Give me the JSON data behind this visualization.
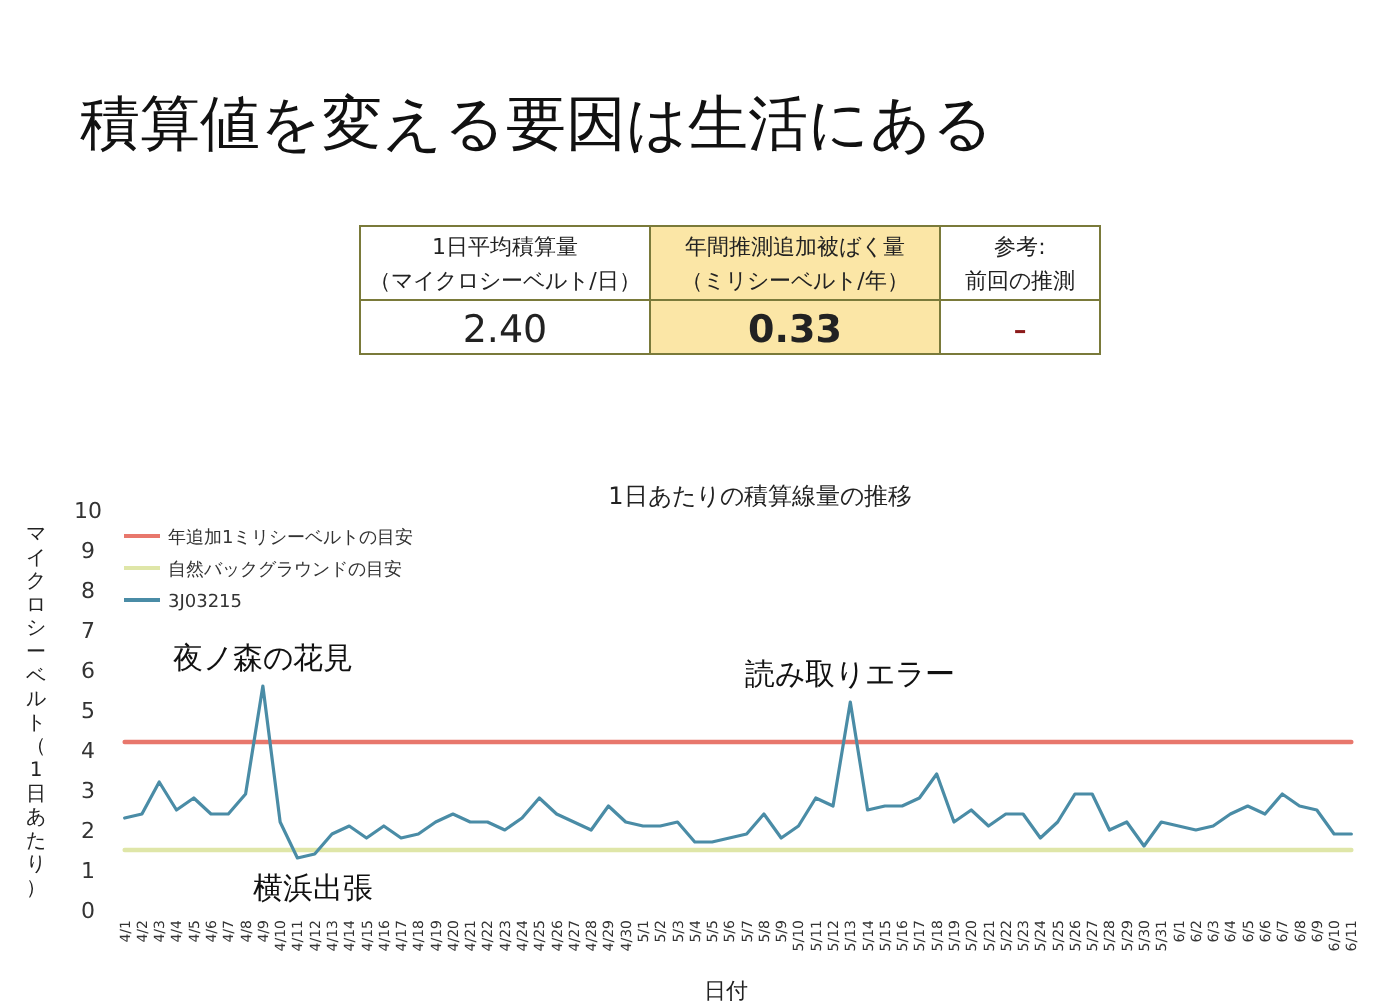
{
  "chart_data": [
    {
      "type": "other",
      "title": "積算値を変える要因は生活にある",
      "annotations": [
        "1日平均積算量",
        "（マイクロシーベルト/日）",
        "年間推測追加被ばく量",
        "（ミリシーベルト/年）",
        "参考:",
        "前回の推測",
        "2.40",
        "0.33",
        "-"
      ]
    },
    {
      "type": "line",
      "title": "1日あたりの積算線量の推移",
      "xlabel": "日付",
      "ylabel": "マイクロシーベルト（1日あたり）",
      "categories": [
        "4/1",
        "4/2",
        "4/3",
        "4/4",
        "4/5",
        "4/6",
        "4/7",
        "4/8",
        "4/9",
        "4/10",
        "4/11",
        "4/12",
        "4/13",
        "4/14",
        "4/15",
        "4/16",
        "4/17",
        "4/18",
        "4/19",
        "4/20",
        "4/21",
        "4/22",
        "4/23",
        "4/24",
        "4/25",
        "4/26",
        "4/27",
        "4/28",
        "4/29",
        "4/30",
        "5/1",
        "5/2",
        "5/3",
        "5/4",
        "5/5",
        "5/6",
        "5/7",
        "5/8",
        "5/9",
        "5/10",
        "5/11",
        "5/12",
        "5/13",
        "5/14",
        "5/15",
        "5/16",
        "5/17",
        "5/18",
        "5/19",
        "5/20",
        "5/21",
        "5/22",
        "5/23",
        "5/24",
        "5/25",
        "5/26",
        "5/27",
        "5/28",
        "5/29",
        "5/30",
        "5/31",
        "6/1",
        "6/2",
        "6/3",
        "6/4",
        "6/5",
        "6/6",
        "6/7",
        "6/8",
        "6/9",
        "6/10",
        "6/11"
      ],
      "series": [
        {
          "name": "年追加1ミリシーベルトの目安",
          "color": "#e8776c",
          "values": [
            4.2,
            4.2,
            4.2,
            4.2,
            4.2,
            4.2,
            4.2,
            4.2,
            4.2,
            4.2,
            4.2,
            4.2,
            4.2,
            4.2,
            4.2,
            4.2,
            4.2,
            4.2,
            4.2,
            4.2,
            4.2,
            4.2,
            4.2,
            4.2,
            4.2,
            4.2,
            4.2,
            4.2,
            4.2,
            4.2,
            4.2,
            4.2,
            4.2,
            4.2,
            4.2,
            4.2,
            4.2,
            4.2,
            4.2,
            4.2,
            4.2,
            4.2,
            4.2,
            4.2,
            4.2,
            4.2,
            4.2,
            4.2,
            4.2,
            4.2,
            4.2,
            4.2,
            4.2,
            4.2,
            4.2,
            4.2,
            4.2,
            4.2,
            4.2,
            4.2,
            4.2,
            4.2,
            4.2,
            4.2,
            4.2,
            4.2,
            4.2,
            4.2,
            4.2,
            4.2,
            4.2,
            4.2
          ]
        },
        {
          "name": "自然バックグラウンドの目安",
          "color": "#dfe6a8",
          "values": [
            1.5,
            1.5,
            1.5,
            1.5,
            1.5,
            1.5,
            1.5,
            1.5,
            1.5,
            1.5,
            1.5,
            1.5,
            1.5,
            1.5,
            1.5,
            1.5,
            1.5,
            1.5,
            1.5,
            1.5,
            1.5,
            1.5,
            1.5,
            1.5,
            1.5,
            1.5,
            1.5,
            1.5,
            1.5,
            1.5,
            1.5,
            1.5,
            1.5,
            1.5,
            1.5,
            1.5,
            1.5,
            1.5,
            1.5,
            1.5,
            1.5,
            1.5,
            1.5,
            1.5,
            1.5,
            1.5,
            1.5,
            1.5,
            1.5,
            1.5,
            1.5,
            1.5,
            1.5,
            1.5,
            1.5,
            1.5,
            1.5,
            1.5,
            1.5,
            1.5,
            1.5,
            1.5,
            1.5,
            1.5,
            1.5,
            1.5,
            1.5,
            1.5,
            1.5,
            1.5,
            1.5,
            1.5
          ]
        },
        {
          "name": "3J03215",
          "color": "#4a8ca6",
          "values": [
            2.3,
            2.4,
            3.2,
            2.5,
            2.8,
            2.4,
            2.4,
            2.9,
            5.6,
            2.2,
            1.3,
            1.4,
            1.9,
            2.1,
            1.8,
            2.1,
            1.8,
            1.9,
            2.2,
            2.4,
            2.2,
            2.2,
            2.0,
            2.3,
            2.8,
            2.4,
            2.2,
            2.0,
            2.6,
            2.2,
            2.1,
            2.1,
            2.2,
            1.7,
            1.7,
            1.8,
            1.9,
            2.4,
            1.8,
            2.1,
            2.8,
            2.6,
            5.2,
            2.5,
            2.6,
            2.6,
            2.8,
            3.4,
            2.2,
            2.5,
            2.1,
            2.4,
            2.4,
            1.8,
            2.2,
            2.9,
            2.9,
            2.0,
            2.2,
            1.6,
            2.2,
            2.1,
            2.0,
            2.1,
            2.4,
            2.6,
            2.4,
            2.9,
            2.6,
            2.5,
            1.9,
            1.9
          ]
        }
      ],
      "ylim": [
        0,
        10
      ],
      "yticks": [
        0,
        1,
        2,
        3,
        4,
        5,
        6,
        7,
        8,
        9,
        10
      ],
      "grid": false,
      "legend": "top left",
      "marker": "none",
      "line_style": "solid",
      "annotations": [
        {
          "text": "夜ノ森の花見",
          "x": "4/9",
          "y": 5.6
        },
        {
          "text": "読み取りエラー",
          "x": "5/13",
          "y": 5.2
        },
        {
          "text": "横浜出張",
          "x": "4/11",
          "y": 1.3
        }
      ]
    }
  ]
}
